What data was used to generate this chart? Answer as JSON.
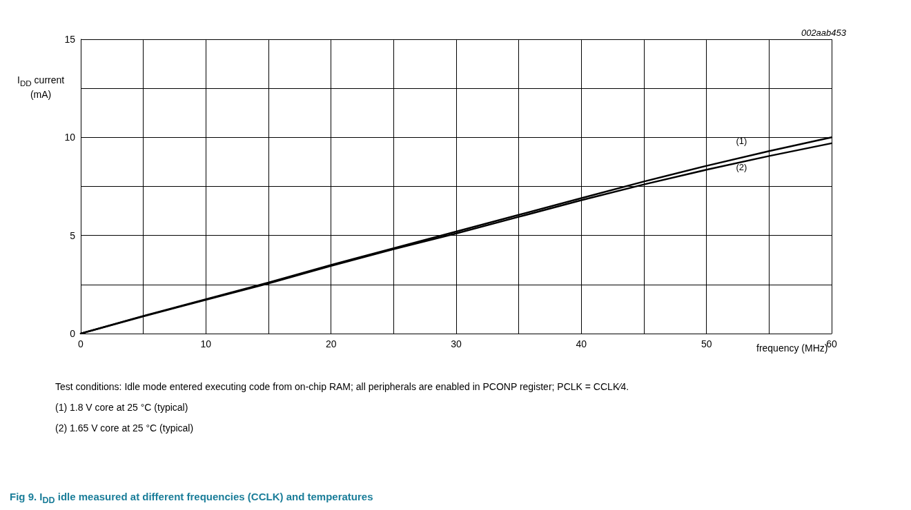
{
  "chart_data": {
    "type": "line",
    "title": "Fig 9.   I$_{DD}$ idle measured at different frequencies (CCLK) and temperatures",
    "xlabel": "frequency (MHz)",
    "ylabel": "I$_{DD}$ current (mA)",
    "annotations": [
      "002aab453",
      "Test conditions: Idle mode entered executing code from on-chip RAM; all peripherals are enabled in PCONP register; PCLK = CCLK⁄4.",
      "(1)   1.8 V core at 25 °C (typical)",
      "(2)   1.65 V core at 25 °C (typical)"
    ],
    "x": [
      0,
      5,
      10,
      15,
      20,
      25,
      30,
      35,
      40,
      45,
      50,
      55,
      60
    ],
    "series": [
      {
        "name": "(1)",
        "color": "#000000",
        "values": [
          0,
          0.9,
          1.75,
          2.6,
          3.5,
          4.35,
          5.2,
          6.05,
          6.9,
          7.75,
          8.55,
          9.3,
          10.0
        ]
      },
      {
        "name": "(2)",
        "color": "#000000",
        "values": [
          0,
          0.88,
          1.72,
          2.55,
          3.45,
          4.3,
          5.1,
          5.95,
          6.8,
          7.6,
          8.35,
          9.05,
          9.7
        ]
      }
    ],
    "xlim": [
      0,
      60
    ],
    "xticks": [
      0,
      {
        "value": 5,
        "label": null
      },
      10,
      {
        "value": 15,
        "label": null
      },
      20,
      {
        "value": 25,
        "label": null
      },
      30,
      {
        "value": 35,
        "label": null
      },
      40,
      {
        "value": 45,
        "label": null
      },
      50,
      {
        "value": 55,
        "label": null
      },
      60
    ],
    "ylim": [
      0,
      15
    ],
    "yticks": [
      0,
      {
        "value": 2.5,
        "label": null
      },
      5,
      {
        "value": 7.5,
        "label": null
      },
      10,
      {
        "value": 12.5,
        "label": null
      },
      15
    ],
    "grid": true,
    "legend": false,
    "marker": "none",
    "line_style": "solid"
  }
}
